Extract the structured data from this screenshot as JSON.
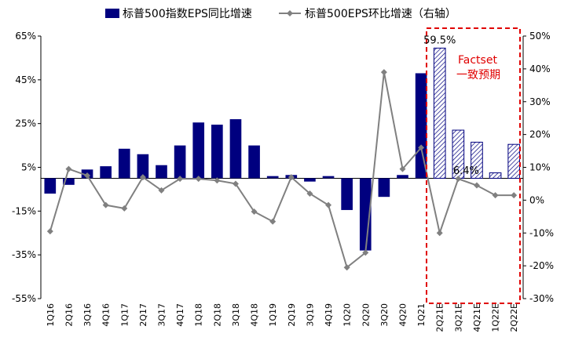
{
  "chart_data": {
    "type": "bar+line",
    "categories": [
      "1Q16",
      "2Q16",
      "3Q16",
      "4Q16",
      "1Q17",
      "2Q17",
      "3Q17",
      "4Q17",
      "1Q18",
      "2Q18",
      "3Q18",
      "4Q18",
      "1Q19",
      "2Q19",
      "3Q19",
      "4Q19",
      "1Q20",
      "2Q20",
      "3Q20",
      "4Q20",
      "1Q21",
      "2Q21E",
      "3Q21E",
      "4Q21E",
      "1Q22E",
      "2Q22E"
    ],
    "estimate_start_index": 21,
    "series": [
      {
        "name": "标普500指数EPS同比增速",
        "type": "bar",
        "axis": "left",
        "color": "#00007f",
        "values": [
          -7,
          -3,
          4,
          5.5,
          13.5,
          11,
          6,
          15,
          25.5,
          24.5,
          27,
          15,
          1,
          1.5,
          -1.5,
          1,
          -14.5,
          -33,
          -8.5,
          1.5,
          48,
          59.5,
          22,
          16.5,
          2.5,
          15.5
        ]
      },
      {
        "name": "标普500EPS环比增速（右轴）",
        "type": "line",
        "axis": "right",
        "color": "#808080",
        "values": [
          -9.5,
          9.5,
          7.5,
          -1.5,
          -2.5,
          7,
          3,
          6.5,
          6.5,
          6,
          5,
          -3.5,
          -6.5,
          7,
          2,
          -1.5,
          -20.5,
          -16,
          39,
          9.5,
          16,
          -10,
          6.5,
          4.5,
          1.5,
          1.5
        ]
      }
    ],
    "y_left": {
      "ticks": [
        "65%",
        "45%",
        "25%",
        "5%",
        "-15%",
        "-35%",
        "-55%"
      ],
      "range": [
        -55,
        65
      ]
    },
    "y_right": {
      "ticks": [
        "50%",
        "40%",
        "30%",
        "20%",
        "10%",
        "0%",
        "-10%",
        "-20%",
        "-30%"
      ],
      "range": [
        -30,
        50
      ]
    },
    "annotations": {
      "bar_label": "59.5%",
      "point_label": "6.4%",
      "box_line1": "Factset",
      "box_line2": "一致预期"
    },
    "legend": {
      "placement": "top-center"
    }
  }
}
